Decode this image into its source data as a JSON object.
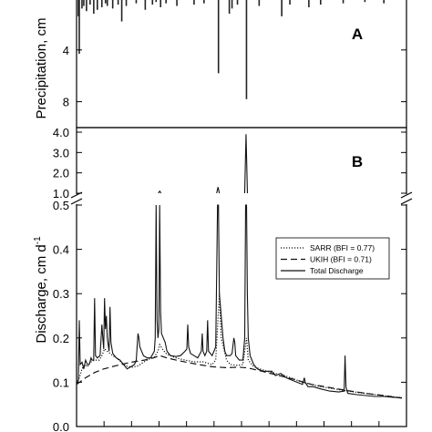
{
  "chart_data": [
    {
      "type": "bar",
      "panel_label": "A",
      "ylabel": "Precipitation, cm",
      "y_inverted": true,
      "ylim": [
        0,
        10
      ],
      "yticks": [
        "4",
        "8"
      ],
      "bars": [
        {
          "x": 2,
          "v": 1.4
        },
        {
          "x": 3,
          "v": 4.3
        },
        {
          "x": 6,
          "v": 0.8
        },
        {
          "x": 8,
          "v": 0.6
        },
        {
          "x": 11,
          "v": 1.0
        },
        {
          "x": 15,
          "v": 0.5
        },
        {
          "x": 19,
          "v": 1.2
        },
        {
          "x": 23,
          "v": 0.9
        },
        {
          "x": 28,
          "v": 0.7
        },
        {
          "x": 32,
          "v": 0.4
        },
        {
          "x": 34,
          "v": 0.6
        },
        {
          "x": 40,
          "v": 0.8
        },
        {
          "x": 46,
          "v": 0.5
        },
        {
          "x": 50,
          "v": 1.8
        },
        {
          "x": 55,
          "v": 0.6
        },
        {
          "x": 66,
          "v": 0.4
        },
        {
          "x": 76,
          "v": 0.9
        },
        {
          "x": 84,
          "v": 0.5
        },
        {
          "x": 88,
          "v": 0.3
        },
        {
          "x": 93,
          "v": 0.7
        },
        {
          "x": 99,
          "v": 0.4
        },
        {
          "x": 111,
          "v": 0.6
        },
        {
          "x": 130,
          "v": 0.5
        },
        {
          "x": 141,
          "v": 0.4
        },
        {
          "x": 157,
          "v": 5.8
        },
        {
          "x": 169,
          "v": 1.2
        },
        {
          "x": 172,
          "v": 0.8
        },
        {
          "x": 178,
          "v": 0.5
        },
        {
          "x": 188,
          "v": 7.8
        },
        {
          "x": 202,
          "v": 0.6
        },
        {
          "x": 227,
          "v": 1.4
        },
        {
          "x": 236,
          "v": 0.5
        },
        {
          "x": 257,
          "v": 0.7
        },
        {
          "x": 270,
          "v": 0.5
        },
        {
          "x": 295,
          "v": 0.4
        },
        {
          "x": 319,
          "v": 0.3
        },
        {
          "x": 340,
          "v": 0.4
        }
      ]
    },
    {
      "type": "line",
      "panel_label": "B",
      "ylabel": "Discharge, cm d",
      "ylabel_superscript": "-1",
      "ylim_lower": [
        0,
        0.5
      ],
      "ylim_upper": [
        0.5,
        4.0
      ],
      "yticks_lower": [
        "0.0",
        "0.1",
        "0.2",
        "0.3",
        "0.4",
        "0.5"
      ],
      "yticks_upper": [
        "1.0",
        "2.0",
        "3.0",
        "4.0"
      ],
      "legend_position": "right",
      "series": [
        {
          "name": "SARR (BFI = 0.77)",
          "style": "dotted",
          "points": [
            [
              0,
              0.097
            ],
            [
              3,
              0.11
            ],
            [
              6,
              0.13
            ],
            [
              9,
              0.14
            ],
            [
              12,
              0.135
            ],
            [
              15,
              0.145
            ],
            [
              20,
              0.15
            ],
            [
              25,
              0.15
            ],
            [
              28,
              0.16
            ],
            [
              31,
              0.175
            ],
            [
              34,
              0.17
            ],
            [
              37,
              0.165
            ],
            [
              40,
              0.16
            ],
            [
              44,
              0.155
            ],
            [
              48,
              0.148
            ],
            [
              52,
              0.14
            ],
            [
              56,
              0.136
            ],
            [
              62,
              0.134
            ],
            [
              68,
              0.137
            ],
            [
              74,
              0.145
            ],
            [
              80,
              0.152
            ],
            [
              86,
              0.157
            ],
            [
              90,
              0.17
            ],
            [
              92,
              0.185
            ],
            [
              96,
              0.172
            ],
            [
              100,
              0.163
            ],
            [
              110,
              0.155
            ],
            [
              120,
              0.15
            ],
            [
              130,
              0.146
            ],
            [
              140,
              0.146
            ],
            [
              150,
              0.14
            ],
            [
              154,
              0.15
            ],
            [
              158,
              0.3
            ],
            [
              160,
              0.2
            ],
            [
              166,
              0.15
            ],
            [
              170,
              0.14
            ],
            [
              178,
              0.138
            ],
            [
              184,
              0.14
            ],
            [
              188,
              0.2
            ],
            [
              190,
              0.15
            ],
            [
              196,
              0.135
            ],
            [
              210,
              0.125
            ],
            [
              230,
              0.115
            ],
            [
              250,
              0.1
            ],
            [
              270,
              0.09
            ],
            [
              300,
              0.08
            ],
            [
              330,
              0.072
            ],
            [
              360,
              0.065
            ]
          ]
        },
        {
          "name": "UKIH (BFI = 0.71)",
          "style": "dashed",
          "points": [
            [
              0,
              0.095
            ],
            [
              10,
              0.11
            ],
            [
              20,
              0.122
            ],
            [
              30,
              0.13
            ],
            [
              45,
              0.138
            ],
            [
              60,
              0.145
            ],
            [
              75,
              0.15
            ],
            [
              85,
              0.155
            ],
            [
              92,
              0.16
            ],
            [
              100,
              0.155
            ],
            [
              110,
              0.15
            ],
            [
              122,
              0.145
            ],
            [
              135,
              0.14
            ],
            [
              150,
              0.135
            ],
            [
              165,
              0.133
            ],
            [
              180,
              0.134
            ],
            [
              190,
              0.132
            ],
            [
              205,
              0.125
            ],
            [
              220,
              0.117
            ],
            [
              240,
              0.107
            ],
            [
              260,
              0.095
            ],
            [
              280,
              0.088
            ],
            [
              300,
              0.081
            ],
            [
              320,
              0.075
            ],
            [
              340,
              0.07
            ],
            [
              360,
              0.064
            ]
          ]
        },
        {
          "name": "Total Discharge",
          "style": "solid",
          "points": [
            [
              0,
              0.095
            ],
            [
              2,
              0.105
            ],
            [
              3,
              0.24
            ],
            [
              4,
              0.14
            ],
            [
              6,
              0.145
            ],
            [
              8,
              0.13
            ],
            [
              10,
              0.15
            ],
            [
              12,
              0.14
            ],
            [
              14,
              0.14
            ],
            [
              16,
              0.155
            ],
            [
              17,
              0.15
            ],
            [
              19,
              0.15
            ],
            [
              20,
              0.29
            ],
            [
              21,
              0.16
            ],
            [
              23,
              0.155
            ],
            [
              26,
              0.16
            ],
            [
              28,
              0.23
            ],
            [
              29,
              0.2
            ],
            [
              30,
              0.175
            ],
            [
              31,
              0.29
            ],
            [
              32,
              0.22
            ],
            [
              33,
              0.25
            ],
            [
              34,
              0.2
            ],
            [
              36,
              0.17
            ],
            [
              37,
              0.27
            ],
            [
              38,
              0.19
            ],
            [
              40,
              0.165
            ],
            [
              44,
              0.155
            ],
            [
              48,
              0.15
            ],
            [
              52,
              0.14
            ],
            [
              56,
              0.13
            ],
            [
              60,
              0.135
            ],
            [
              64,
              0.14
            ],
            [
              66,
              0.15
            ],
            [
              68,
              0.21
            ],
            [
              69,
              0.2
            ],
            [
              70,
              0.18
            ],
            [
              72,
              0.17
            ],
            [
              74,
              0.16
            ],
            [
              78,
              0.155
            ],
            [
              82,
              0.155
            ],
            [
              86,
              0.17
            ],
            [
              87,
              0.2
            ],
            [
              88,
              0.5
            ],
            [
              89,
              0.24
            ],
            [
              90,
              0.2
            ],
            [
              91,
              0.22
            ],
            [
              92,
              0.5
            ],
            [
              93,
              0.26
            ],
            [
              94,
              0.21
            ],
            [
              96,
              0.2
            ],
            [
              98,
              0.19
            ],
            [
              100,
              0.17
            ],
            [
              104,
              0.16
            ],
            [
              110,
              0.158
            ],
            [
              115,
              0.16
            ],
            [
              120,
              0.17
            ],
            [
              122,
              0.175
            ],
            [
              123,
              0.23
            ],
            [
              124,
              0.18
            ],
            [
              126,
              0.165
            ],
            [
              130,
              0.16
            ],
            [
              134,
              0.155
            ],
            [
              138,
              0.17
            ],
            [
              139,
              0.21
            ],
            [
              140,
              0.17
            ],
            [
              142,
              0.16
            ],
            [
              144,
              0.17
            ],
            [
              145,
              0.24
            ],
            [
              146,
              0.17
            ],
            [
              150,
              0.16
            ],
            [
              154,
              0.18
            ],
            [
              156,
              0.5
            ],
            [
              157,
              0.5
            ],
            [
              158,
              0.3
            ],
            [
              160,
              0.25
            ],
            [
              162,
              0.2
            ],
            [
              164,
              0.17
            ],
            [
              166,
              0.16
            ],
            [
              168,
              0.16
            ],
            [
              170,
              0.16
            ],
            [
              172,
              0.165
            ],
            [
              174,
              0.2
            ],
            [
              175,
              0.19
            ],
            [
              176,
              0.16
            ],
            [
              180,
              0.15
            ],
            [
              184,
              0.15
            ],
            [
              186,
              0.2
            ],
            [
              187,
              0.5
            ],
            [
              188,
              0.5
            ],
            [
              189,
              0.3
            ],
            [
              190,
              0.2
            ],
            [
              192,
              0.16
            ],
            [
              196,
              0.14
            ],
            [
              200,
              0.13
            ],
            [
              206,
              0.125
            ],
            [
              212,
              0.125
            ],
            [
              216,
              0.125
            ],
            [
              220,
              0.115
            ],
            [
              226,
              0.12
            ],
            [
              232,
              0.11
            ],
            [
              238,
              0.105
            ],
            [
              244,
              0.1
            ],
            [
              250,
              0.095
            ],
            [
              252,
              0.11
            ],
            [
              253,
              0.1
            ],
            [
              256,
              0.09
            ],
            [
              262,
              0.09
            ],
            [
              270,
              0.085
            ],
            [
              280,
              0.08
            ],
            [
              290,
              0.078
            ],
            [
              296,
              0.08
            ],
            [
              297,
              0.16
            ],
            [
              298,
              0.09
            ],
            [
              300,
              0.075
            ],
            [
              310,
              0.072
            ],
            [
              320,
              0.07
            ],
            [
              330,
              0.068
            ],
            [
              340,
              0.068
            ],
            [
              350,
              0.066
            ],
            [
              360,
              0.065
            ]
          ]
        }
      ],
      "upper_peaks": [
        {
          "x": 92,
          "v": 1.1
        },
        {
          "x": 156.5,
          "v": 1.3
        },
        {
          "x": 187.5,
          "v": 3.9
        }
      ]
    }
  ]
}
